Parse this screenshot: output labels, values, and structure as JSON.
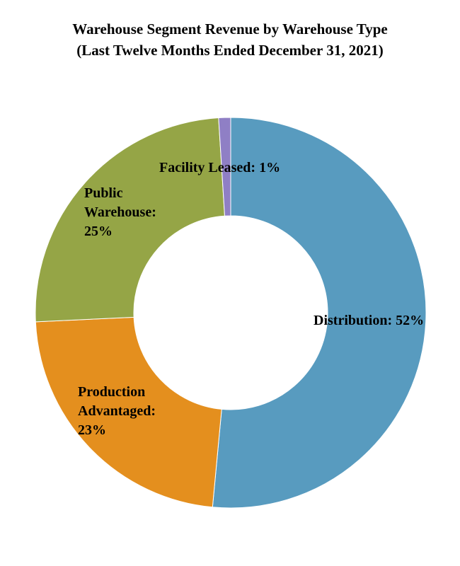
{
  "chart_data": {
    "type": "pie",
    "title": "Warehouse Segment Revenue by Warehouse Type",
    "subtitle": "(Last Twelve Months Ended December 31, 2021)",
    "categories": [
      "Distribution",
      "Production Advantaged",
      "Public Warehouse",
      "Facility Leased"
    ],
    "values": [
      52,
      23,
      25,
      1
    ],
    "units": "%",
    "colors": [
      "#589bbf",
      "#e48f1e",
      "#95a546",
      "#8f7fc5"
    ],
    "labels": [
      {
        "category": "Distribution",
        "lines": [
          "Distribution: 52%"
        ]
      },
      {
        "category": "Production Advantaged",
        "lines": [
          "Production",
          "Advantaged:",
          "23%"
        ]
      },
      {
        "category": "Public Warehouse",
        "lines": [
          "Public",
          "Warehouse:",
          "25%"
        ]
      },
      {
        "category": "Facility Leased",
        "lines": [
          "Facility Leased: 1%"
        ]
      }
    ],
    "legend": "none"
  }
}
